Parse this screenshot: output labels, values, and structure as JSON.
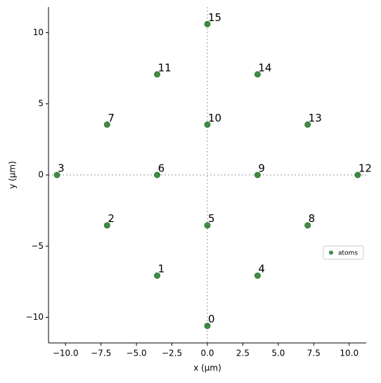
{
  "chart_data": {
    "type": "scatter",
    "x_label": "x (μm)",
    "y_label": "y (μm)",
    "series": [
      {
        "name": "atoms",
        "color": "#2e7d32",
        "x": [
          0,
          -3.54,
          -7.07,
          -10.6,
          3.54,
          0,
          -3.54,
          -7.07,
          7.07,
          3.54,
          0,
          -3.54,
          10.6,
          7.07,
          3.54,
          0
        ],
        "values": [
          -10.6,
          -7.07,
          -3.54,
          0,
          -7.07,
          -3.54,
          0,
          3.54,
          -3.54,
          0,
          3.54,
          7.07,
          0,
          3.54,
          7.07,
          10.6
        ],
        "point_labels": [
          "0",
          "1",
          "2",
          "3",
          "4",
          "5",
          "6",
          "7",
          "8",
          "9",
          "10",
          "11",
          "12",
          "13",
          "14",
          "15"
        ]
      }
    ],
    "xlim": [
      -11.2,
      11.2
    ],
    "ylim": [
      -11.8,
      11.8
    ],
    "xticks": [
      {
        "value": -10,
        "label": "−10.0"
      },
      {
        "value": -7.5,
        "label": "−7.5"
      },
      {
        "value": -5,
        "label": "−5.0"
      },
      {
        "value": -2.5,
        "label": "−2.5"
      },
      {
        "value": 0,
        "label": "0.0"
      },
      2.5,
      {
        "value": 5,
        "label": "5.0"
      },
      7.5,
      {
        "value": 10,
        "label": "10.0"
      }
    ],
    "yticks": [
      {
        "value": -10,
        "label": "−10"
      },
      {
        "value": -5,
        "label": "−5"
      },
      0,
      5,
      10
    ],
    "legend": "center right",
    "grid": false
  }
}
